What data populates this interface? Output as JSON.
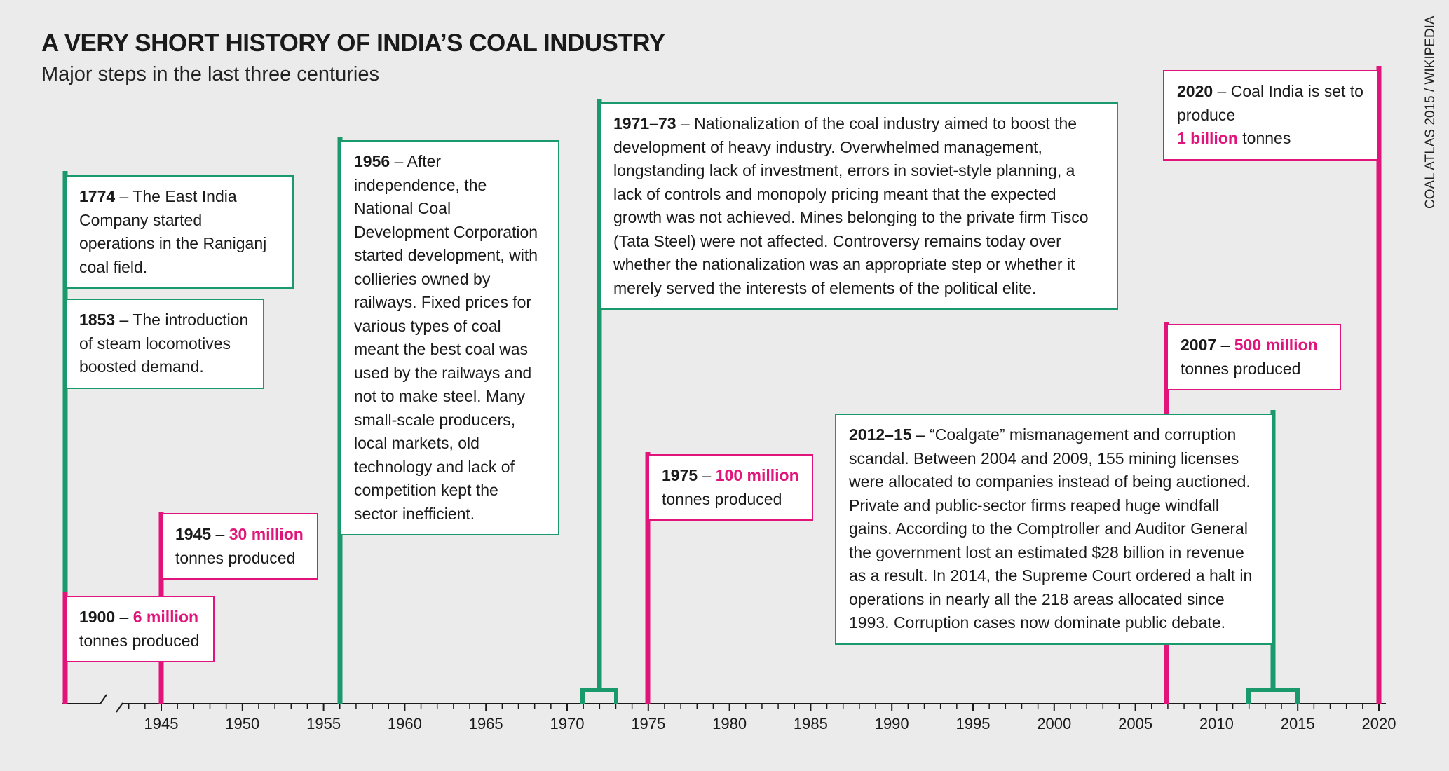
{
  "title": "A VERY SHORT HISTORY OF INDIA’S COAL INDUSTRY",
  "subtitle": "Major steps in the last three centuries",
  "credit": "COAL ATLAS 2015 / WIKIPEDIA",
  "colors": {
    "green": "#1a9a6c",
    "pink": "#e0147a"
  },
  "axis": {
    "start": 1945,
    "end": 2020,
    "labels": [
      "1945",
      "1950",
      "1955",
      "1960",
      "1965",
      "1970",
      "1975",
      "1980",
      "1985",
      "1990",
      "1995",
      "2000",
      "2005",
      "2010",
      "2015",
      "2020"
    ]
  },
  "events": [
    {
      "id": "e1774",
      "year": "1774",
      "sep": " – ",
      "text": "The East India Company started operations in the Raniganj coal field."
    },
    {
      "id": "e1853",
      "year": "1853",
      "sep": " – ",
      "text": "The introduction of steam locomotives boosted demand."
    },
    {
      "id": "e1900",
      "year": "1900",
      "sep": " – ",
      "highlight": "6 million",
      "text": "tonnes produced"
    },
    {
      "id": "e1945",
      "year": "1945",
      "sep": " – ",
      "highlight": "30 million",
      "text": "tonnes produced"
    },
    {
      "id": "e1956",
      "year": "1956",
      "sep": " – ",
      "text": "After independence, the National Coal Development Corporation started development, with collieries owned by railways. Fixed prices for various types of coal meant the best coal was used by the railways and not to make steel. Many small-scale producers, local markets, old technology and lack of competition kept the sector inefficient."
    },
    {
      "id": "e1971",
      "year": "1971–73",
      "sep": " – ",
      "text": "Nationalization of the coal industry aimed to boost the development of heavy industry. Overwhelmed management, longstanding lack of investment, errors in soviet-style planning, a lack of controls and monopoly pricing meant that the expected growth was not achieved. Mines belonging to the private firm Tisco (Tata Steel) were not affected. Controversy remains today over whether the nationalization was an appropriate step or whether it merely served the interests of elements of the political elite."
    },
    {
      "id": "e1975",
      "year": "1975",
      "sep": " – ",
      "highlight": "100 million",
      "text": "tonnes produced"
    },
    {
      "id": "e2007",
      "year": "2007",
      "sep": " – ",
      "highlight": "500 million",
      "text": "tonnes produced"
    },
    {
      "id": "e2012",
      "year": "2012–15",
      "sep": " – ",
      "text": "“Coalgate” mismanagement and corruption scandal. Between 2004 and 2009, 155 mining licenses were allocated to companies instead of being auctioned. Private and public-sector firms reaped huge windfall gains. According to the Comptroller and Auditor General the government lost an estimated $28 billion in revenue as a result. In 2014, the Supreme Court ordered a halt in operations in nearly all the 218 areas allocated since 1993. Corruption cases now dominate public debate."
    },
    {
      "id": "e2020",
      "year": "2020",
      "sep": " – ",
      "text_before": "Coal India is set to produce",
      "highlight": "1 billion",
      "text": "tonnes"
    }
  ]
}
